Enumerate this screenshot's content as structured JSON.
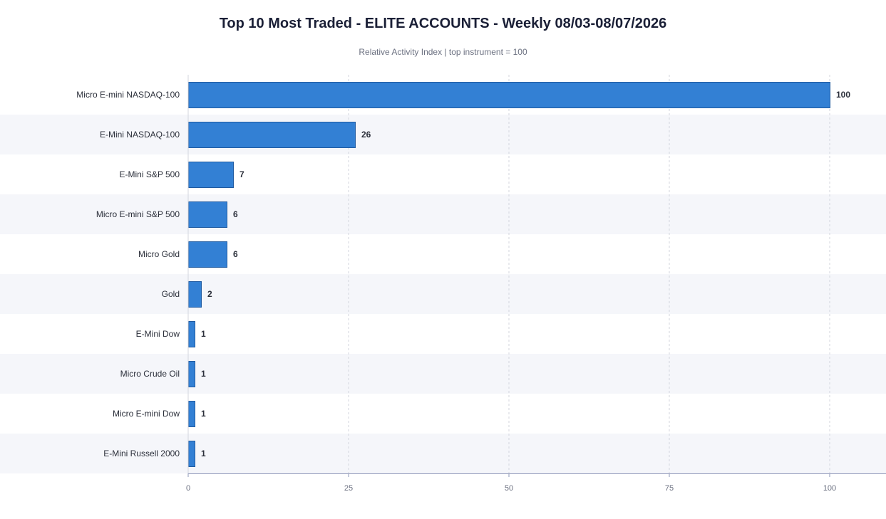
{
  "chart_data": {
    "type": "bar",
    "orientation": "horizontal",
    "title": "Top 10 Most Traded - ELITE ACCOUNTS - Weekly 08/03-08/07/2026",
    "subtitle": "Relative Activity Index  |  top instrument = 100",
    "categories": [
      "Micro E-mini NASDAQ-100",
      "E-Mini NASDAQ-100",
      "E-Mini S&P 500",
      "Micro E-mini S&P 500",
      "Micro Gold",
      "Gold",
      "E-Mini Dow",
      "Micro Crude Oil",
      "Micro E-mini Dow",
      "E-Mini Russell 2000"
    ],
    "values": [
      100,
      26,
      7,
      6,
      6,
      2,
      1,
      1,
      1,
      1
    ],
    "value_labels": [
      "100",
      "26",
      "7",
      "6",
      "6",
      "2",
      "1",
      "1",
      "1",
      "1"
    ],
    "xlim": [
      0,
      100
    ],
    "xticks": [
      0,
      25,
      50,
      75,
      100
    ],
    "grid": true,
    "xlabel": "",
    "ylabel": ""
  },
  "colors": {
    "bar": "#3380d4",
    "bar_stroke": "#1f5aa0",
    "band_alt": "#f5f6fa",
    "grid": "#d3d6de",
    "axis": "#8e97b8"
  }
}
